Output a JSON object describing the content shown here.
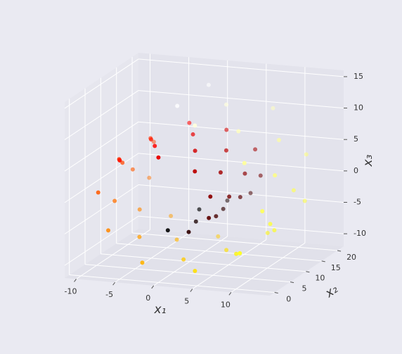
{
  "chart_data": {
    "type": "scatter3d",
    "xlabel": "x₁",
    "ylabel": "x₂",
    "zlabel": "x₃",
    "xlim": [
      -11.5,
      15
    ],
    "ylim": [
      -1.5,
      22
    ],
    "zlim": [
      -12,
      16
    ],
    "xticks": [
      -10,
      -5,
      0,
      5,
      10
    ],
    "yticks": [
      0,
      5,
      10,
      15,
      20
    ],
    "zticks": [
      -10,
      -5,
      0,
      5,
      10,
      15
    ],
    "grid": true,
    "colormap": "hot",
    "x": [
      0,
      0,
      1.6,
      1.6,
      3.1,
      3.1,
      4.6,
      4.6,
      5.7,
      5.7,
      6.3,
      6.3,
      6.3,
      6.3,
      5.6,
      5.6,
      4.3,
      4.3,
      2.3,
      2.3,
      0,
      0,
      -2.5,
      -2.5,
      -5,
      -5,
      -7.1,
      -7.1,
      -8.7,
      -8.7,
      -9.4,
      -9.4,
      -9.3,
      -9.3,
      -8.1,
      -8.1,
      -6.1,
      -6.1,
      -3.3,
      -3.3,
      0,
      0,
      3.5,
      3.5,
      6.8,
      6.8,
      9.7,
      9.7,
      11.6,
      11.6,
      12.6,
      12.6,
      12.2,
      12.2,
      10.7,
      10.7,
      7.9,
      7.9,
      4.3,
      4.3,
      0,
      0
    ],
    "y": [
      3,
      13,
      8,
      18,
      13,
      2,
      18,
      7,
      2,
      12,
      7,
      17,
      12,
      1,
      17,
      6,
      1,
      11,
      6,
      16,
      11,
      0,
      16,
      5,
      0,
      10,
      5,
      15,
      10,
      20,
      15,
      4,
      20,
      9,
      4,
      14,
      9,
      19,
      14,
      3,
      19,
      8,
      3,
      13,
      8,
      18,
      13,
      2,
      18,
      7,
      2,
      12,
      7,
      17,
      12,
      1,
      17,
      6,
      1,
      11,
      6,
      16
    ],
    "z": [
      -4.7,
      -4.7,
      -4.8,
      -4.8,
      -4.3,
      -4.3,
      -3.3,
      -3.3,
      -1.8,
      -1.8,
      0,
      0,
      2,
      2,
      4.1,
      4.1,
      5.8,
      5.8,
      7.2,
      7.2,
      7.9,
      7.9,
      7.8,
      7.8,
      6.9,
      6.9,
      5.2,
      5.2,
      2.8,
      2.8,
      0,
      0,
      -3,
      -3,
      -5.9,
      -5.9,
      -8.4,
      -8.4,
      -10.2,
      -10.2,
      -11,
      -11,
      -10.8,
      -10.8,
      -9.4,
      -9.4,
      -7,
      -7,
      -3.8,
      -3.8,
      0,
      0,
      4,
      4,
      7.8,
      7.8,
      10.9,
      10.9,
      13.1,
      13.1,
      14.1,
      14.1
    ],
    "c": [
      4.71,
      4.71,
      5.03,
      5.03,
      5.34,
      5.34,
      5.65,
      5.65,
      5.97,
      5.97,
      6.28,
      6.28,
      6.6,
      6.6,
      6.91,
      6.91,
      7.23,
      7.23,
      7.54,
      7.54,
      7.85,
      7.85,
      8.17,
      8.17,
      8.48,
      8.48,
      8.8,
      8.8,
      9.11,
      9.11,
      9.42,
      9.42,
      9.74,
      9.74,
      10.05,
      10.05,
      10.37,
      10.37,
      10.68,
      10.68,
      11,
      11,
      11.31,
      11.31,
      11.62,
      11.62,
      11.94,
      11.94,
      12.25,
      12.25,
      12.57,
      12.57,
      12.88,
      12.88,
      13.19,
      13.19,
      13.51,
      13.51,
      13.82,
      13.82,
      14.14,
      14.14
    ]
  }
}
